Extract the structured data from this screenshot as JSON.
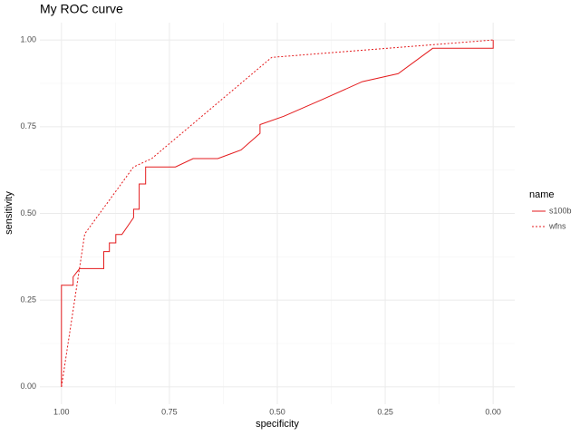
{
  "chart_data": {
    "type": "line",
    "title": "My ROC curve",
    "x_label": "specificity",
    "y_label": "sensitivity",
    "xlim": [
      1.05,
      -0.05
    ],
    "ylim": [
      -0.05,
      1.05
    ],
    "xticks": [
      {
        "value": 1,
        "label": "1.00"
      },
      0.75,
      {
        "value": 0.5,
        "label": "0.50"
      },
      0.25,
      {
        "value": 0,
        "label": "0.00"
      }
    ],
    "yticks": [
      {
        "value": 0,
        "label": "0.00"
      },
      0.25,
      {
        "value": 0.5,
        "label": "0.50"
      },
      0.75,
      {
        "value": 1,
        "label": "1.00"
      }
    ],
    "xminor": [
      0.875,
      0.625,
      0.375,
      0.125
    ],
    "yminor": [
      0.125,
      0.375,
      0.625,
      0.875
    ],
    "grid": true,
    "legend_title": "name",
    "legend_position": "right",
    "series": [
      {
        "name": "s100b",
        "color": "#e41a1c",
        "dash": "solid",
        "x": [
          1,
          1,
          0.973,
          0.973,
          0.958,
          0.902,
          0.902,
          0.889,
          0.889,
          0.874,
          0.874,
          0.86,
          0.833,
          0.833,
          0.82,
          0.82,
          0.805,
          0.805,
          0.736,
          0.695,
          0.638,
          0.584,
          0.54,
          0.54,
          0.485,
          0.393,
          0.303,
          0.22,
          0.14,
          0,
          0
        ],
        "values": [
          0,
          0.293,
          0.293,
          0.317,
          0.341,
          0.341,
          0.39,
          0.39,
          0.415,
          0.415,
          0.439,
          0.439,
          0.488,
          0.512,
          0.512,
          0.585,
          0.585,
          0.634,
          0.634,
          0.658,
          0.658,
          0.683,
          0.731,
          0.756,
          0.78,
          0.83,
          0.88,
          0.903,
          0.976,
          0.976,
          1
        ]
      },
      {
        "name": "wfns",
        "color": "#e41a1c",
        "dash": "dotted",
        "x": [
          1,
          0.946,
          0.833,
          0.791,
          0.513,
          0
        ],
        "values": [
          0,
          0.441,
          0.634,
          0.658,
          0.95,
          1
        ]
      }
    ]
  }
}
